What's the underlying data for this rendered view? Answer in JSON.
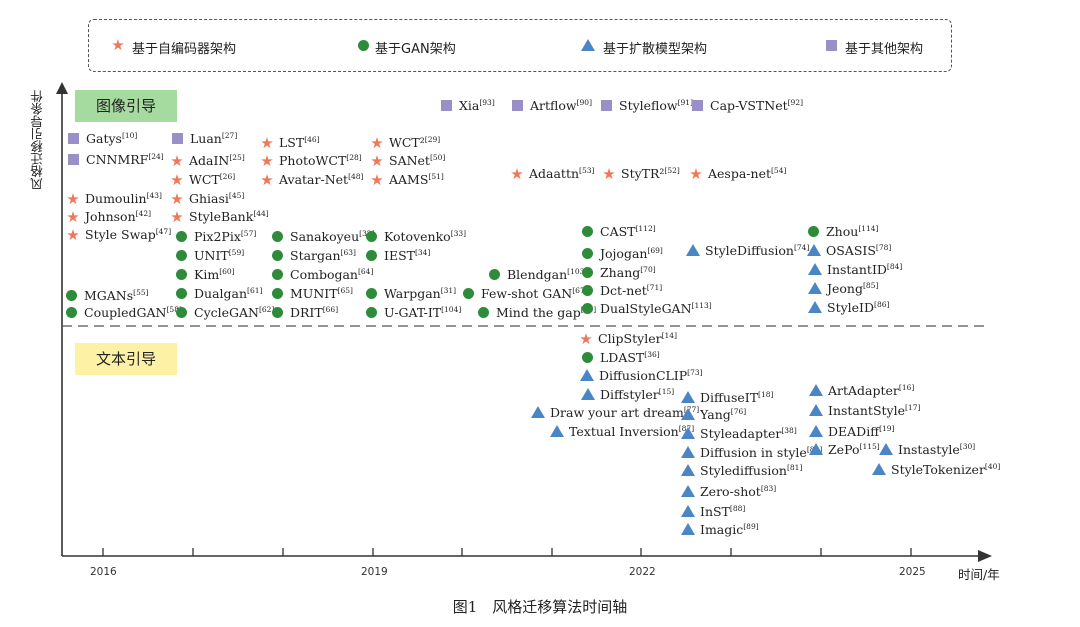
{
  "legend": {
    "items": [
      {
        "shape": "star",
        "label": "基于自编码器架构"
      },
      {
        "shape": "circle",
        "label": "基于GAN架构"
      },
      {
        "shape": "triangle",
        "label": "基于扩散模型架构"
      },
      {
        "shape": "square",
        "label": "基于其他架构"
      }
    ]
  },
  "bands": {
    "image": "图像引导",
    "text": "文本引导"
  },
  "axes": {
    "y_title": "风格迁移引导条件",
    "x_title": "时间/年",
    "x_ticks": [
      "2016",
      "2019",
      "2022",
      "2025"
    ]
  },
  "caption": "图1　风格迁移算法时间轴",
  "colors": {
    "star": "#f0785a",
    "circle": "#2e8b3a",
    "triangle": "#4a86c5",
    "square": "#9b8fc8",
    "band_fill": "#a6dba0",
    "text_band_fill": "#fdf1a6"
  },
  "methods": [
    {
      "name": "Xia",
      "ref": "[93]",
      "shape": "square"
    },
    {
      "name": "Artflow",
      "ref": "[90]",
      "shape": "square"
    },
    {
      "name": "Styleflow",
      "ref": "[91]",
      "shape": "square"
    },
    {
      "name": "Cap-VSTNet",
      "ref": "[92]",
      "shape": "square"
    },
    {
      "name": "Gatys",
      "ref": "[10]",
      "shape": "square"
    },
    {
      "name": "CNNMRF",
      "ref": "[24]",
      "shape": "square"
    },
    {
      "name": "Luan",
      "ref": "[27]",
      "shape": "square"
    },
    {
      "name": "Dumoulin",
      "ref": "[43]",
      "shape": "star"
    },
    {
      "name": "Johnson",
      "ref": "[42]",
      "shape": "star"
    },
    {
      "name": "Style Swap",
      "ref": "[47]",
      "shape": "star"
    },
    {
      "name": "AdaIN",
      "ref": "[25]",
      "shape": "star"
    },
    {
      "name": "WCT",
      "ref": "[26]",
      "shape": "star"
    },
    {
      "name": "Ghiasi",
      "ref": "[45]",
      "shape": "star"
    },
    {
      "name": "StyleBank",
      "ref": "[44]",
      "shape": "star"
    },
    {
      "name": "LST",
      "ref": "[46]",
      "shape": "star"
    },
    {
      "name": "PhotoWCT",
      "ref": "[28]",
      "shape": "star"
    },
    {
      "name": "Avatar-Net",
      "ref": "[48]",
      "shape": "star"
    },
    {
      "name": "WCT²",
      "ref": "[29]",
      "shape": "star"
    },
    {
      "name": "SANet",
      "ref": "[50]",
      "shape": "star"
    },
    {
      "name": "AAMS",
      "ref": "[51]",
      "shape": "star"
    },
    {
      "name": "Adaattn",
      "ref": "[53]",
      "shape": "star"
    },
    {
      "name": "StyTR²",
      "ref": "[52]",
      "shape": "star"
    },
    {
      "name": "Aespa-net",
      "ref": "[54]",
      "shape": "star"
    },
    {
      "name": "MGANs",
      "ref": "[55]",
      "shape": "circle"
    },
    {
      "name": "CoupledGAN",
      "ref": "[58]",
      "shape": "circle"
    },
    {
      "name": "Pix2Pix",
      "ref": "[57]",
      "shape": "circle"
    },
    {
      "name": "UNIT",
      "ref": "[59]",
      "shape": "circle"
    },
    {
      "name": "Kim",
      "ref": "[60]",
      "shape": "circle"
    },
    {
      "name": "Dualgan",
      "ref": "[61]",
      "shape": "circle"
    },
    {
      "name": "CycleGAN",
      "ref": "[62]",
      "shape": "circle"
    },
    {
      "name": "Sanakoyeu",
      "ref": "[32]",
      "shape": "circle"
    },
    {
      "name": "Stargan",
      "ref": "[63]",
      "shape": "circle"
    },
    {
      "name": "Combogan",
      "ref": "[64]",
      "shape": "circle"
    },
    {
      "name": "MUNIT",
      "ref": "[65]",
      "shape": "circle"
    },
    {
      "name": "DRIT",
      "ref": "[66]",
      "shape": "circle"
    },
    {
      "name": "Kotovenko",
      "ref": "[33]",
      "shape": "circle"
    },
    {
      "name": "IEST",
      "ref": "[34]",
      "shape": "circle"
    },
    {
      "name": "Warpgan",
      "ref": "[31]",
      "shape": "circle"
    },
    {
      "name": "U-GAT-IT",
      "ref": "[104]",
      "shape": "circle"
    },
    {
      "name": "Blendgan",
      "ref": "[103]",
      "shape": "circle"
    },
    {
      "name": "Few-shot GAN",
      "ref": "[67]",
      "shape": "circle"
    },
    {
      "name": "Mind the gap",
      "ref": "[68]",
      "shape": "circle"
    },
    {
      "name": "CAST",
      "ref": "[112]",
      "shape": "circle"
    },
    {
      "name": "Jojogan",
      "ref": "[69]",
      "shape": "circle"
    },
    {
      "name": "Zhang",
      "ref": "[70]",
      "shape": "circle"
    },
    {
      "name": "Dct-net",
      "ref": "[71]",
      "shape": "circle"
    },
    {
      "name": "DualStyleGAN",
      "ref": "[113]",
      "shape": "circle"
    },
    {
      "name": "StyleDiffusion",
      "ref": "[74]",
      "shape": "triangle"
    },
    {
      "name": "Zhou",
      "ref": "[114]",
      "shape": "circle"
    },
    {
      "name": "OSASIS",
      "ref": "[78]",
      "shape": "triangle"
    },
    {
      "name": "InstantID",
      "ref": "[84]",
      "shape": "triangle"
    },
    {
      "name": "Jeong",
      "ref": "[85]",
      "shape": "triangle"
    },
    {
      "name": "StyleID",
      "ref": "[86]",
      "shape": "triangle"
    },
    {
      "name": "ClipStyler",
      "ref": "[14]",
      "shape": "star"
    },
    {
      "name": "LDAST",
      "ref": "[36]",
      "shape": "circle"
    },
    {
      "name": "DiffusionCLIP",
      "ref": "[73]",
      "shape": "triangle"
    },
    {
      "name": "Diffstyler",
      "ref": "[15]",
      "shape": "triangle"
    },
    {
      "name": "Draw your art dream",
      "ref": "[77]",
      "shape": "triangle"
    },
    {
      "name": "Textual Inversion",
      "ref": "[87]",
      "shape": "triangle"
    },
    {
      "name": "DiffuseIT",
      "ref": "[18]",
      "shape": "triangle"
    },
    {
      "name": "Yang",
      "ref": "[76]",
      "shape": "triangle"
    },
    {
      "name": "Styleadapter",
      "ref": "[38]",
      "shape": "triangle"
    },
    {
      "name": "Diffusion in style",
      "ref": "[80]",
      "shape": "triangle"
    },
    {
      "name": "Stylediffusion",
      "ref": "[81]",
      "shape": "triangle"
    },
    {
      "name": "Zero-shot",
      "ref": "[83]",
      "shape": "triangle"
    },
    {
      "name": "InST",
      "ref": "[88]",
      "shape": "triangle"
    },
    {
      "name": "Imagic",
      "ref": "[89]",
      "shape": "triangle"
    },
    {
      "name": "ArtAdapter",
      "ref": "[16]",
      "shape": "triangle"
    },
    {
      "name": "InstantStyle",
      "ref": "[17]",
      "shape": "triangle"
    },
    {
      "name": "DEADiff",
      "ref": "[19]",
      "shape": "triangle"
    },
    {
      "name": "ZePo",
      "ref": "[115]",
      "shape": "triangle"
    },
    {
      "name": "Instastyle",
      "ref": "[30]",
      "shape": "triangle"
    },
    {
      "name": "StyleTokenizer",
      "ref": "[40]",
      "shape": "triangle"
    }
  ]
}
